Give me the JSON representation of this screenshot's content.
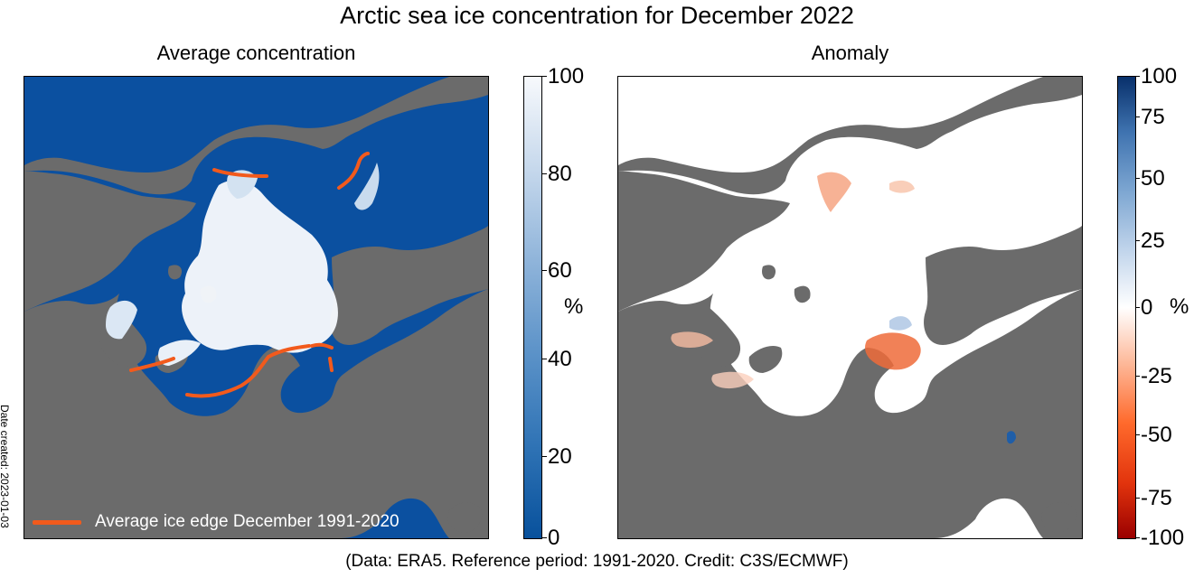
{
  "title": "Arctic sea ice concentration for December 2022",
  "left_panel": {
    "title": "Average concentration",
    "legend_label": "Average ice edge December 1991-2020",
    "colorbar": {
      "ticks": [
        "100",
        "80",
        "60",
        "40",
        "20",
        "0"
      ],
      "unit": "%",
      "colors": [
        "#08519c",
        "#f7f9fc"
      ]
    }
  },
  "right_panel": {
    "title": "Anomaly",
    "colorbar": {
      "ticks": [
        "100",
        "75",
        "50",
        "25",
        "0",
        "-25",
        "-50",
        "-75",
        "-100"
      ],
      "unit": "%",
      "colors": [
        "#9a0000",
        "#ffffff",
        "#08306b"
      ]
    }
  },
  "colors": {
    "ocean": "#0b50a0",
    "land": "#6b6b6b",
    "ice": "#f5f8fc",
    "ice_edge": "#f25a1c"
  },
  "date_created": "Date created: 2023-01-03",
  "footer": "(Data: ERA5.  Reference period: 1991-2020.  Credit: C3S/ECMWF)"
}
